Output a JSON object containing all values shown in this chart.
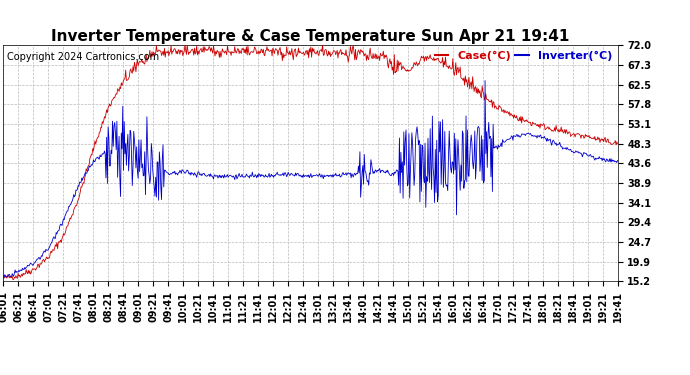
{
  "title": "Inverter Temperature & Case Temperature Sun Apr 21 19:41",
  "copyright": "Copyright 2024 Cartronics.com",
  "legend_case_label": "Case(°C)",
  "legend_inverter_label": "Inverter(°C)",
  "case_color": "#cc0000",
  "inverter_color": "#0000cc",
  "background_color": "#ffffff",
  "grid_color": "#bbbbbb",
  "yticks": [
    15.2,
    19.9,
    24.7,
    29.4,
    34.1,
    38.9,
    43.6,
    48.3,
    53.1,
    57.8,
    62.5,
    67.3,
    72.0
  ],
  "ymin": 15.2,
  "ymax": 72.0,
  "xtick_labels": [
    "06:01",
    "06:21",
    "06:41",
    "07:01",
    "07:21",
    "07:41",
    "08:01",
    "08:21",
    "08:41",
    "09:01",
    "09:21",
    "09:41",
    "10:01",
    "10:21",
    "10:41",
    "11:01",
    "11:21",
    "11:41",
    "12:01",
    "12:21",
    "12:41",
    "13:01",
    "13:21",
    "13:41",
    "14:01",
    "14:21",
    "14:41",
    "15:01",
    "15:21",
    "15:41",
    "16:01",
    "16:21",
    "16:41",
    "17:01",
    "17:21",
    "17:41",
    "18:01",
    "18:21",
    "18:41",
    "19:01",
    "19:21",
    "19:41"
  ],
  "n_ticks": 42,
  "pts_per_tick": 20,
  "title_fontsize": 11,
  "copyright_fontsize": 7,
  "tick_fontsize": 7,
  "legend_fontsize": 8
}
